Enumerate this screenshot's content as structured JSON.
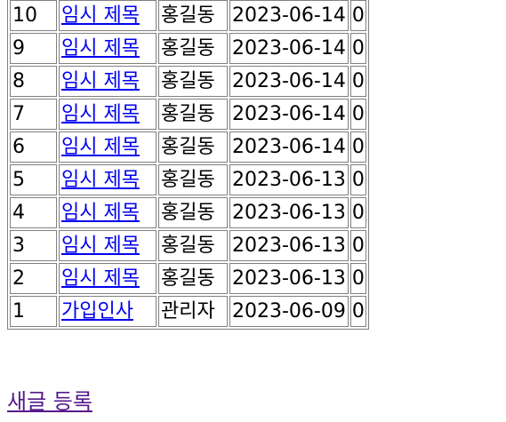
{
  "posts": [
    {
      "no": "10",
      "title": "임시 제목",
      "author": "홍길동",
      "date": "2023-06-14",
      "views": "0"
    },
    {
      "no": "9",
      "title": "임시 제목",
      "author": "홍길동",
      "date": "2023-06-14",
      "views": "0"
    },
    {
      "no": "8",
      "title": "임시 제목",
      "author": "홍길동",
      "date": "2023-06-14",
      "views": "0"
    },
    {
      "no": "7",
      "title": "임시 제목",
      "author": "홍길동",
      "date": "2023-06-14",
      "views": "0"
    },
    {
      "no": "6",
      "title": "임시 제목",
      "author": "홍길동",
      "date": "2023-06-14",
      "views": "0"
    },
    {
      "no": "5",
      "title": "임시 제목",
      "author": "홍길동",
      "date": "2023-06-13",
      "views": "0"
    },
    {
      "no": "4",
      "title": "임시 제목",
      "author": "홍길동",
      "date": "2023-06-13",
      "views": "0"
    },
    {
      "no": "3",
      "title": "임시 제목",
      "author": "홍길동",
      "date": "2023-06-13",
      "views": "0"
    },
    {
      "no": "2",
      "title": "임시 제목",
      "author": "홍길동",
      "date": "2023-06-13",
      "views": "0"
    },
    {
      "no": "1",
      "title": "가입인사",
      "author": "관리자",
      "date": "2023-06-09",
      "views": "0"
    }
  ],
  "new_post_label": "새글 등록",
  "colors": {
    "link": "#0000ee",
    "visited_link": "#551a8b",
    "border": "#808080"
  }
}
